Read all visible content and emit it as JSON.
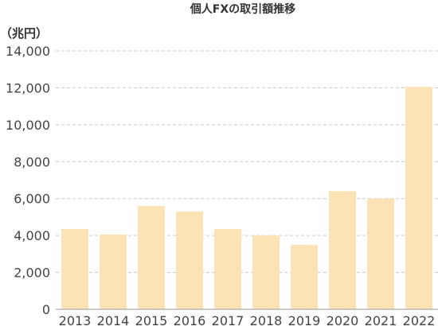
{
  "chart_data": {
    "type": "bar",
    "title": "個人FXの取引額推移",
    "unit_label": "（兆円）",
    "categories": [
      "2013",
      "2014",
      "2015",
      "2016",
      "2017",
      "2018",
      "2019",
      "2020",
      "2021",
      "2022"
    ],
    "values": [
      4350,
      4050,
      5600,
      5300,
      4350,
      4000,
      3500,
      6400,
      6000,
      12050
    ],
    "ylim": [
      0,
      14000
    ],
    "yticks": [
      0,
      2000,
      4000,
      6000,
      8000,
      10000,
      12000,
      14000
    ],
    "ytick_labels": [
      "0",
      "2,000",
      "4,000",
      "6,000",
      "8,000",
      "10,000",
      "12,000",
      "14,000"
    ],
    "grid": true,
    "bar_color": "#fbe3b6"
  }
}
